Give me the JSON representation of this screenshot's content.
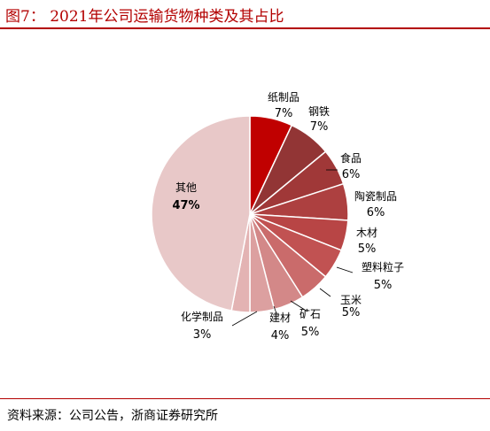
{
  "header": {
    "title": "图7： 2021年公司运输货物种类及其占比"
  },
  "footer": {
    "source": "资料来源：公司公告，浙商证券研究所"
  },
  "chart_data": {
    "type": "pie",
    "title": "图7： 2021年公司运输货物种类及其占比",
    "slices": [
      {
        "name": "纸制品",
        "value": 7,
        "label": "7%",
        "color": "#c00000"
      },
      {
        "name": "钢铁",
        "value": 7,
        "label": "7%",
        "color": "#923535"
      },
      {
        "name": "食品",
        "value": 6,
        "label": "6%",
        "color": "#a03838"
      },
      {
        "name": "陶瓷制品",
        "value": 6,
        "label": "6%",
        "color": "#ad4040"
      },
      {
        "name": "木材",
        "value": 5,
        "label": "5%",
        "color": "#b84545"
      },
      {
        "name": "塑料粒子",
        "value": 5,
        "label": "5%",
        "color": "#c15252"
      },
      {
        "name": "玉米",
        "value": 5,
        "label": "5%",
        "color": "#ca6b6b"
      },
      {
        "name": "矿石",
        "value": 5,
        "label": "5%",
        "color": "#d38888"
      },
      {
        "name": "建材",
        "value": 4,
        "label": "4%",
        "color": "#dca0a0"
      },
      {
        "name": "化学制品",
        "value": 3,
        "label": "3%",
        "color": "#e3b3b3"
      },
      {
        "name": "其他",
        "value": 47,
        "label": "47%",
        "color": "#e8c8c8"
      }
    ]
  }
}
